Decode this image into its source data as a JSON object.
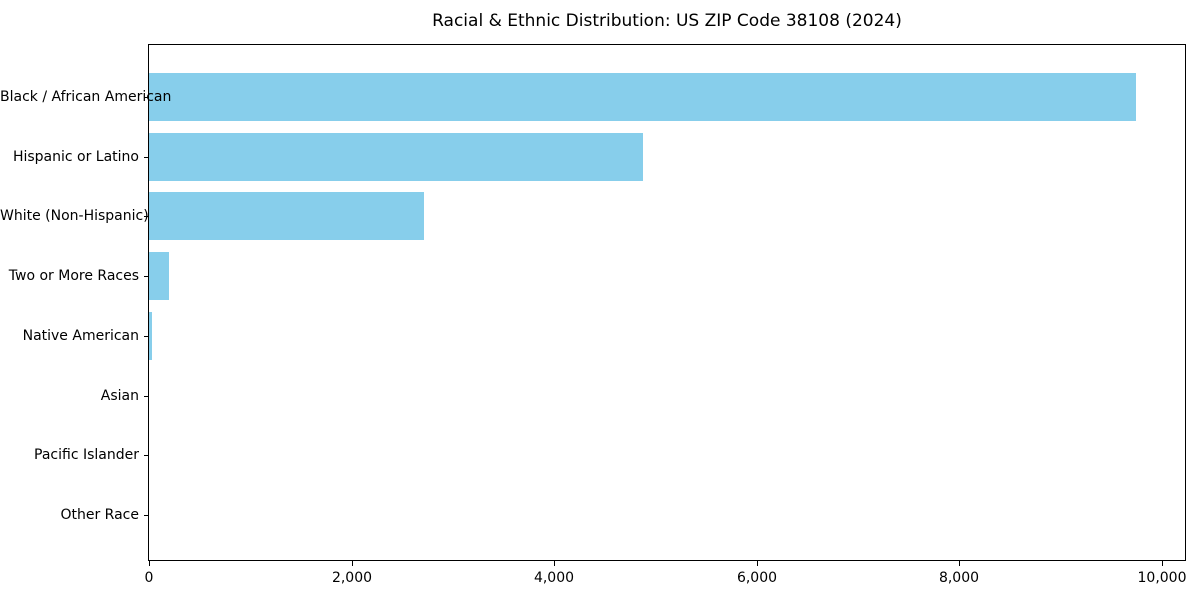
{
  "chart_data": {
    "type": "bar",
    "orientation": "horizontal",
    "title": "Racial & Ethnic Distribution: US ZIP Code 38108 (2024)",
    "categories": [
      "Black / African American",
      "Hispanic or Latino",
      "White (Non-Hispanic)",
      "Two or More Races",
      "Native American",
      "Asian",
      "Pacific Islander",
      "Other Race"
    ],
    "values": [
      9750,
      4880,
      2720,
      200,
      30,
      0,
      0,
      0
    ],
    "xlabel": "",
    "ylabel": "",
    "xlim": [
      0,
      10230
    ],
    "xticks": [
      0,
      2000,
      4000,
      6000,
      8000,
      10000
    ],
    "xtick_labels": [
      "0",
      "2,000",
      "4,000",
      "6,000",
      "8,000",
      "10,000"
    ],
    "bar_color": "#87CEEB",
    "axis_color": "#000000",
    "text_color": "#000000",
    "grid": false,
    "legend": null
  }
}
